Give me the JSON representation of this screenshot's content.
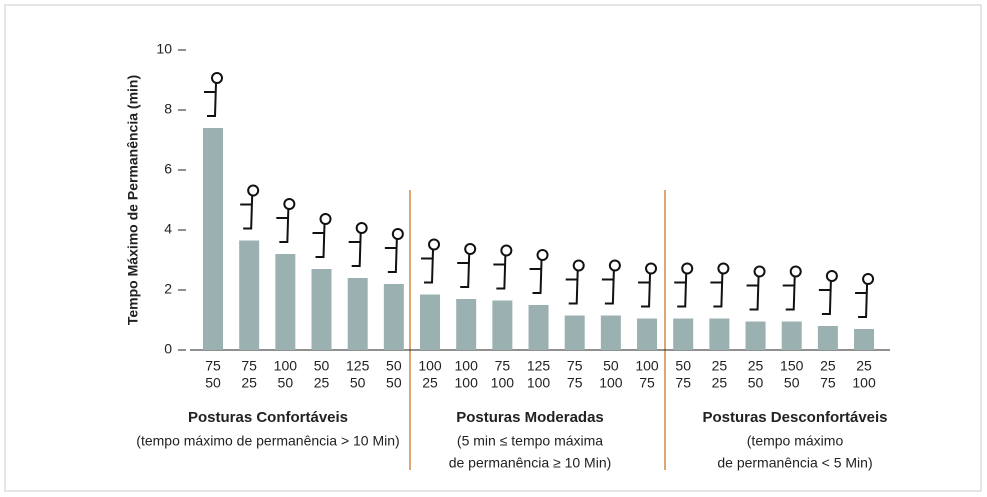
{
  "chart_data": {
    "type": "bar",
    "ylabel": "Tempo Máximo de Permanência (min)",
    "categories": [
      [
        "75",
        "50"
      ],
      [
        "75",
        "25"
      ],
      [
        "100",
        "50"
      ],
      [
        "50",
        "25"
      ],
      [
        "125",
        "50"
      ],
      [
        "50",
        "50"
      ],
      [
        "100",
        "25"
      ],
      [
        "100",
        "100"
      ],
      [
        "75",
        "100"
      ],
      [
        "125",
        "100"
      ],
      [
        "75",
        "75"
      ],
      [
        "50",
        "100"
      ],
      [
        "100",
        "75"
      ],
      [
        "50",
        "75"
      ],
      [
        "25",
        "25"
      ],
      [
        "25",
        "50"
      ],
      [
        "150",
        "50"
      ],
      [
        "25",
        "75"
      ],
      [
        "25",
        "100"
      ]
    ],
    "values": [
      7.4,
      3.65,
      3.2,
      2.7,
      2.4,
      2.2,
      1.85,
      1.7,
      1.65,
      1.5,
      1.15,
      1.15,
      1.05,
      1.05,
      1.05,
      0.95,
      0.95,
      0.8,
      0.7
    ],
    "color": "#9bb0b0",
    "ylim": [
      0,
      10
    ],
    "yticks": [
      0,
      2,
      4,
      6,
      8,
      10
    ],
    "groups": [
      {
        "name": "Posturas Confortáveis",
        "description": [
          "(tempo máximo de permanência > 10 Min)"
        ]
      },
      {
        "name": "Posturas Moderadas",
        "description": [
          "(5 min ≤ tempo máxima",
          "de permanência ≥ 10 Min)"
        ]
      },
      {
        "name": "Posturas Desconfortáveis",
        "description": [
          "(tempo máximo",
          "de permanência < 5 Min)"
        ]
      }
    ]
  }
}
